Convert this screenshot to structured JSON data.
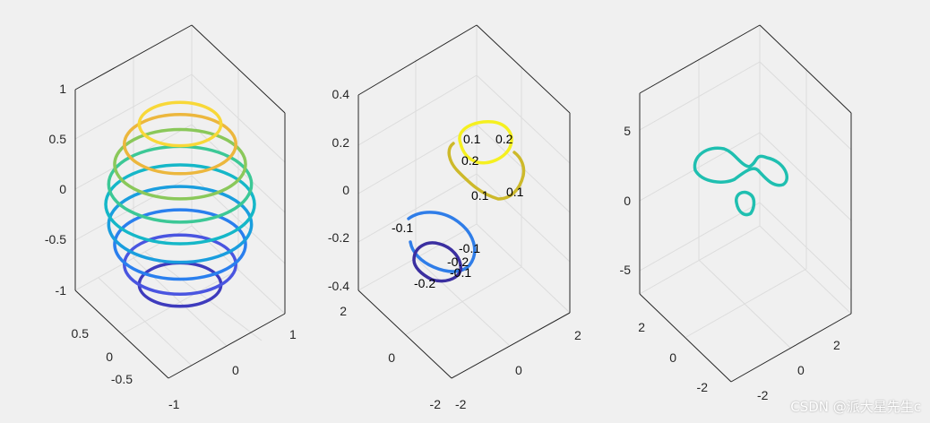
{
  "watermark": "CSDN @派大星先生c",
  "chart_data": [
    {
      "type": "line3d",
      "title": "",
      "z_ticks": [
        "1",
        "0.5",
        "0",
        "-0.5",
        "-1"
      ],
      "x_ticks": [
        "1",
        "0",
        "-1"
      ],
      "y_ticks": [
        "0.5",
        "0",
        "-0.5"
      ],
      "zlim": [
        -1,
        1
      ],
      "series": [
        {
          "z": -0.8,
          "radius": 0.55,
          "color": "#3e3bbd"
        },
        {
          "z": -0.6,
          "radius": 0.75,
          "color": "#4a55e0"
        },
        {
          "z": -0.4,
          "radius": 0.88,
          "color": "#2a7fee"
        },
        {
          "z": -0.2,
          "radius": 0.96,
          "color": "#1a9ede"
        },
        {
          "z": 0.0,
          "radius": 1.0,
          "color": "#15b7c8"
        },
        {
          "z": 0.2,
          "radius": 0.96,
          "color": "#3cc896"
        },
        {
          "z": 0.4,
          "radius": 0.88,
          "color": "#8ac85a"
        },
        {
          "z": 0.6,
          "radius": 0.75,
          "color": "#ecb73d"
        },
        {
          "z": 0.8,
          "radius": 0.55,
          "color": "#f8d838"
        }
      ]
    },
    {
      "type": "contour3",
      "title": "",
      "z_ticks": [
        "0.4",
        "0.2",
        "0",
        "-0.2",
        "-0.4"
      ],
      "x_ticks": [
        "2",
        "0",
        "-2"
      ],
      "y_ticks": [
        "2",
        "0",
        "-2"
      ],
      "zlim": [
        -0.4,
        0.4
      ],
      "levels": [
        -0.2,
        -0.1,
        0.1,
        0.2
      ],
      "contour_labels": [
        "-0.1",
        "-0.2",
        "-0.1",
        "-0.1",
        "-0.2",
        "0.1",
        "0.2",
        "0.2",
        "0.1",
        "0.1"
      ]
    },
    {
      "type": "contour3",
      "title": "",
      "z_ticks": [
        "5",
        "0",
        "-5"
      ],
      "x_ticks": [
        "2",
        "0",
        "-2"
      ],
      "y_ticks": [
        "2",
        "0",
        "-2"
      ],
      "zlim": [
        -8,
        8
      ],
      "levels": [
        2
      ],
      "contour_labels": []
    }
  ]
}
